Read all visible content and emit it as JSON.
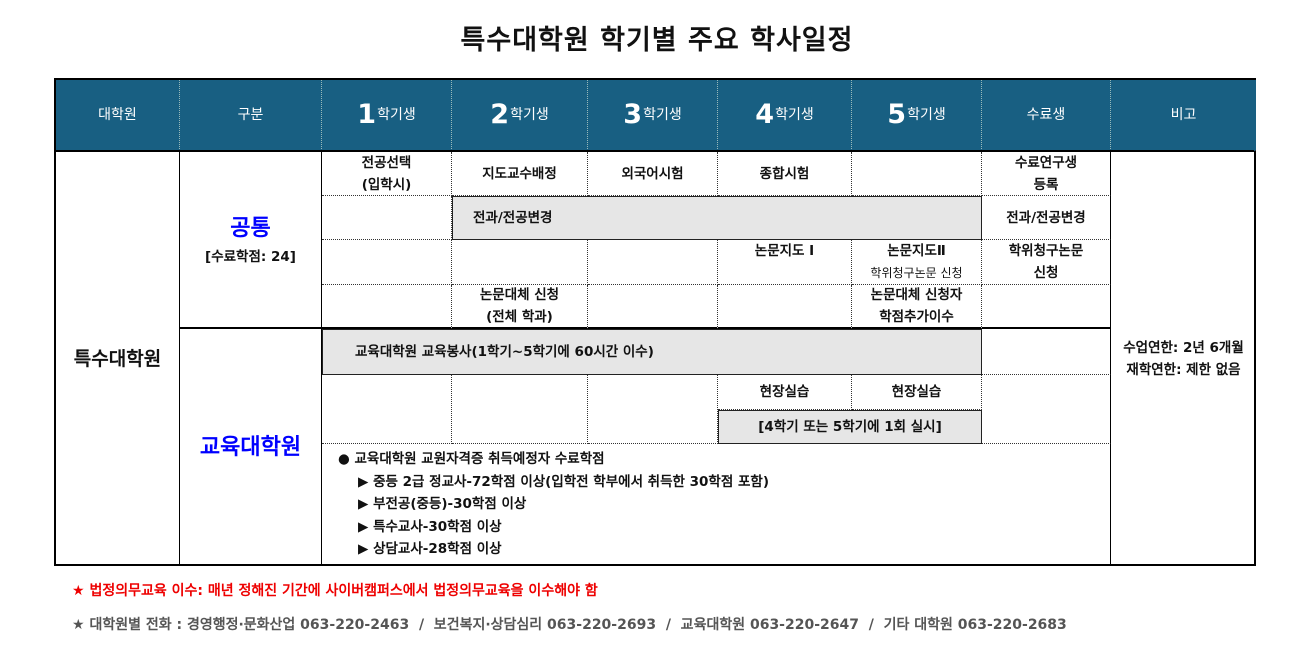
{
  "title": "특수대학원 학기별 주요 학사일정",
  "header": {
    "grad": "대학원",
    "category": "구분",
    "sem_suffix": "학기생",
    "sem": [
      "1",
      "2",
      "3",
      "4",
      "5"
    ],
    "completion": "수료생",
    "remarks": "비고"
  },
  "grad_name": "특수대학원",
  "common": {
    "label": "공통",
    "credits": "[수료학점: 24]"
  },
  "edu": {
    "label": "교육대학원"
  },
  "rows": {
    "r1": [
      "전공선택\n(입학시)",
      "지도교수배정",
      "외국어시험",
      "종합시험",
      "",
      "수료연구생\n등록"
    ],
    "r2": {
      "span": "전과/전공변경",
      "completion": "전과/전공변경"
    },
    "r3": {
      "s4": "논문지도 Ⅰ",
      "s5a": "논문지도Ⅱ",
      "s5b": "학위청구논문 신청",
      "completion": "학위청구논문\n신청"
    },
    "r4": {
      "s2": "논문대체 신청\n(전체 학과)",
      "s5": "논문대체 신청자\n학점추가이수"
    },
    "r5": {
      "span": "교육대학원 교육봉사(1학기~5학기에 60시간 이수)"
    },
    "r6": {
      "s4": "현장실습",
      "s5": "현장실습",
      "span": "[4학기 또는 5학기에 1회 실시]"
    },
    "r7": {
      "heading": "교육대학원 교원자격증 취득예정자 수료학점",
      "items": [
        "중등 2급 정교사-72학점 이상(입학전 학부에서 취득한 30학점 포함)",
        "부전공(중등)-30학점 이상",
        "특수교사-30학점 이상",
        "상담교사-28학점 이상"
      ]
    }
  },
  "remarks": {
    "line1": "수업연한: 2년 6개월",
    "line2": "재학연한: 제한 없음"
  },
  "footnotes": {
    "legal": "법정의무교육 이수: 매년 정해진 기간에 사이버캠퍼스에서 법정의무교육을 이수해야 함",
    "phone": "대학원별 전화 : 경영행정·문화산업 063-220-2463  /  보건복지·상담심리 063-220-2693  /  교육대학원 063-220-2647  /  기타 대학원 063-220-2683"
  },
  "colors": {
    "header_bg": "#185f82",
    "common_label": "#0000ff",
    "highlight": "#e6e6e6",
    "footnote_red": "#ee0000"
  }
}
